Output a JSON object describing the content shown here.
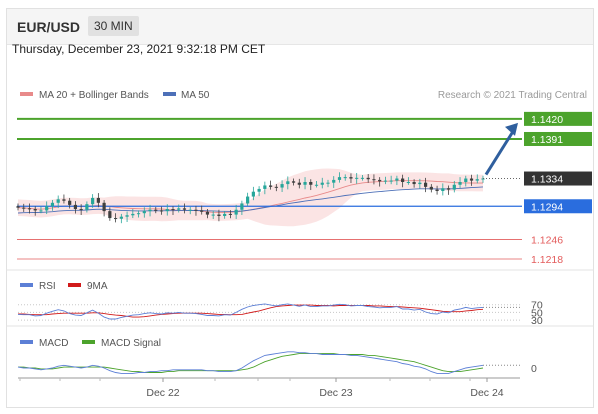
{
  "header": {
    "pair": "EUR/USD",
    "timeframe": "30 MIN"
  },
  "datetime": "Thursday, December 23, 2021 9:32:18 PM CET",
  "legend": {
    "ma20_bb": "MA 20 + Bollinger Bands",
    "ma50": "MA 50",
    "credit": "Research © 2021 Trading Central"
  },
  "colors": {
    "resistance": "#4ca32c",
    "support": "#2a6dde",
    "minor": "#e35c5c",
    "current": "#333333",
    "bbfill": "#fbe1e1",
    "ma20": "#e88a8a",
    "ma50": "#4d70b8",
    "up": "#26a69a",
    "down": "#3f3f3f",
    "arrow": "#2f5f9e"
  },
  "chart_data": [
    {
      "type": "candlestick",
      "x_ticks": [
        "Dec 22",
        "Dec 23",
        "Dec 24"
      ],
      "y_range": [
        1.1205,
        1.144
      ],
      "close": [
        1.1292,
        1.1291,
        1.129,
        1.1288,
        1.1288,
        1.1294,
        1.1299,
        1.1304,
        1.1302,
        1.1296,
        1.129,
        1.1289,
        1.1297,
        1.1306,
        1.1299,
        1.1287,
        1.1277,
        1.1276,
        1.1279,
        1.1281,
        1.1283,
        1.1284,
        1.1287,
        1.1289,
        1.1288,
        1.1287,
        1.129,
        1.1289,
        1.1291,
        1.1289,
        1.1289,
        1.1288,
        1.1286,
        1.1282,
        1.1282,
        1.128,
        1.1283,
        1.1282,
        1.1289,
        1.1298,
        1.1308,
        1.1315,
        1.1319,
        1.1324,
        1.1322,
        1.1321,
        1.1326,
        1.133,
        1.1328,
        1.1325,
        1.1329,
        1.1325,
        1.1325,
        1.1328,
        1.1328,
        1.1332,
        1.1336,
        1.1336,
        1.1334,
        1.1335,
        1.1335,
        1.1333,
        1.1332,
        1.133,
        1.1331,
        1.1331,
        1.1334,
        1.1329,
        1.1329,
        1.1326,
        1.1328,
        1.1322,
        1.1318,
        1.1316,
        1.132,
        1.1318,
        1.1325,
        1.1329,
        1.1334,
        1.1331,
        1.1333,
        1.1334
      ],
      "ma20_last": 1.1328,
      "ma50_last": 1.1329,
      "levels": {
        "resistance": [
          "1.1420",
          "1.1391"
        ],
        "current": "1.1334",
        "support": "1.1294",
        "minor": [
          "1.1246",
          "1.1218"
        ]
      }
    },
    {
      "type": "line",
      "title": "RSI",
      "ticks": [
        "70",
        "50",
        "30"
      ],
      "series": [
        {
          "name": "RSI",
          "values": [
            45,
            44,
            44,
            41,
            42,
            48,
            53,
            57,
            54,
            47,
            43,
            42,
            49,
            56,
            48,
            38,
            33,
            33,
            37,
            40,
            43,
            44,
            47,
            49,
            47,
            46,
            49,
            48,
            50,
            48,
            48,
            47,
            45,
            42,
            42,
            41,
            44,
            43,
            50,
            58,
            64,
            68,
            70,
            72,
            69,
            67,
            70,
            72,
            69,
            66,
            69,
            65,
            65,
            67,
            67,
            69,
            71,
            70,
            67,
            68,
            68,
            65,
            64,
            62,
            63,
            63,
            65,
            59,
            59,
            56,
            58,
            51,
            47,
            46,
            51,
            49,
            56,
            59,
            63,
            60,
            62,
            63
          ]
        },
        {
          "name": "9MA",
          "values": [
            46,
            46,
            45,
            44,
            44,
            44,
            46,
            47,
            48,
            48,
            48,
            48,
            48,
            49,
            49,
            47,
            45,
            43,
            42,
            40,
            38,
            38,
            39,
            41,
            43,
            45,
            46,
            47,
            48,
            48,
            48,
            48,
            48,
            47,
            46,
            45,
            45,
            44,
            44,
            45,
            48,
            51,
            54,
            58,
            62,
            65,
            67,
            68,
            69,
            69,
            69,
            69,
            68,
            68,
            68,
            67,
            68,
            68,
            68,
            68,
            68,
            68,
            67,
            67,
            66,
            65,
            65,
            64,
            63,
            62,
            61,
            59,
            57,
            55,
            53,
            52,
            52,
            52,
            54,
            55,
            57,
            58
          ]
        }
      ]
    },
    {
      "type": "line",
      "title": "MACD",
      "ticks": [
        "0"
      ],
      "series": [
        {
          "name": "MACD",
          "values": [
            0.1,
            0.0,
            0.0,
            -0.1,
            -0.2,
            -0.1,
            0.0,
            0.2,
            0.3,
            0.2,
            0.1,
            0.0,
            0.1,
            0.3,
            0.2,
            0.0,
            -0.3,
            -0.5,
            -0.6,
            -0.6,
            -0.6,
            -0.5,
            -0.5,
            -0.4,
            -0.4,
            -0.3,
            -0.3,
            -0.2,
            -0.2,
            -0.2,
            -0.2,
            -0.2,
            -0.2,
            -0.3,
            -0.3,
            -0.4,
            -0.4,
            -0.4,
            -0.3,
            0.0,
            0.4,
            0.8,
            1.1,
            1.4,
            1.5,
            1.6,
            1.7,
            1.8,
            1.8,
            1.7,
            1.7,
            1.6,
            1.6,
            1.5,
            1.5,
            1.5,
            1.5,
            1.5,
            1.4,
            1.4,
            1.3,
            1.2,
            1.1,
            1.0,
            0.9,
            0.8,
            0.7,
            0.5,
            0.4,
            0.2,
            0.1,
            -0.1,
            -0.4,
            -0.6,
            -0.6,
            -0.6,
            -0.4,
            -0.2,
            0.0,
            0.1,
            0.2,
            0.3
          ]
        },
        {
          "name": "MACD Signal",
          "values": [
            0.1,
            0.1,
            0.0,
            0.0,
            -0.1,
            -0.1,
            -0.1,
            0.0,
            0.1,
            0.1,
            0.1,
            0.1,
            0.1,
            0.1,
            0.1,
            0.1,
            0.0,
            -0.1,
            -0.2,
            -0.3,
            -0.4,
            -0.4,
            -0.5,
            -0.5,
            -0.5,
            -0.5,
            -0.4,
            -0.4,
            -0.3,
            -0.3,
            -0.3,
            -0.3,
            -0.3,
            -0.3,
            -0.3,
            -0.3,
            -0.3,
            -0.3,
            -0.3,
            -0.2,
            -0.1,
            0.1,
            0.4,
            0.7,
            0.9,
            1.1,
            1.3,
            1.4,
            1.5,
            1.6,
            1.6,
            1.6,
            1.6,
            1.6,
            1.6,
            1.6,
            1.5,
            1.5,
            1.5,
            1.5,
            1.5,
            1.4,
            1.4,
            1.3,
            1.2,
            1.1,
            1.0,
            0.9,
            0.8,
            0.7,
            0.5,
            0.3,
            0.1,
            -0.1,
            -0.3,
            -0.4,
            -0.4,
            -0.4,
            -0.3,
            -0.2,
            -0.1,
            0.0
          ]
        }
      ]
    }
  ]
}
